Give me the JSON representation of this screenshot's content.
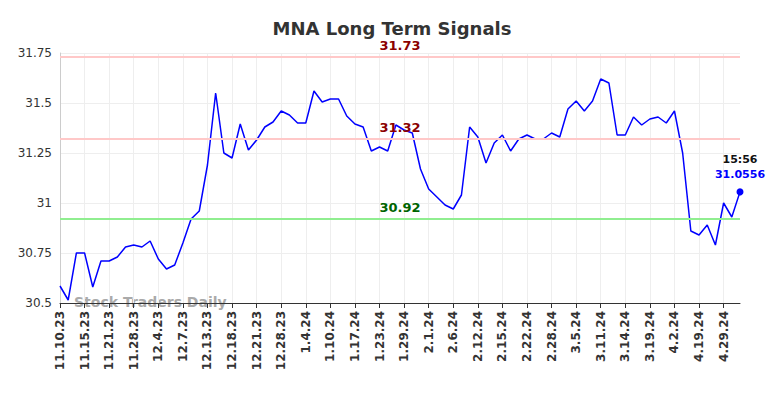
{
  "chart_data": {
    "type": "line",
    "title": "MNA Long Term Signals",
    "color": "#0000ff",
    "categories": [
      "11.10.23",
      null,
      null,
      "11.15.23",
      null,
      null,
      "11.21.23",
      null,
      null,
      "11.28.23",
      null,
      null,
      "12.4.23",
      null,
      null,
      "12.7.23",
      null,
      null,
      "12.13.23",
      null,
      null,
      "12.18.23",
      null,
      null,
      "12.21.23",
      null,
      null,
      "12.28.23",
      null,
      null,
      "1.4.24",
      null,
      null,
      "1.10.24",
      null,
      null,
      "1.17.24",
      null,
      null,
      "1.23.24",
      null,
      null,
      "1.29.24",
      null,
      null,
      "2.1.24",
      null,
      null,
      "2.6.24",
      null,
      null,
      "2.12.24",
      null,
      null,
      "2.15.24",
      null,
      null,
      "2.22.24",
      null,
      null,
      "2.28.24",
      null,
      null,
      "3.5.24",
      null,
      null,
      "3.11.24",
      null,
      null,
      "3.14.24",
      null,
      null,
      "3.19.24",
      null,
      null,
      "4.2.24",
      null,
      null,
      "4.19.24",
      null,
      null,
      "4.29.24",
      null,
      null
    ],
    "values": [
      30.585,
      30.515,
      30.75,
      30.75,
      30.58,
      30.71,
      30.71,
      30.73,
      30.78,
      30.79,
      30.78,
      30.81,
      30.72,
      30.67,
      30.69,
      30.8,
      30.92,
      30.96,
      31.19,
      31.55,
      31.25,
      31.225,
      31.395,
      31.265,
      31.315,
      31.38,
      31.405,
      31.46,
      31.44,
      31.4,
      31.4,
      31.56,
      31.505,
      31.52,
      31.52,
      31.435,
      31.395,
      31.38,
      31.26,
      31.28,
      31.26,
      31.39,
      31.365,
      31.35,
      31.17,
      31.07,
      31.03,
      30.99,
      30.97,
      31.04,
      31.38,
      31.33,
      31.2,
      31.3,
      31.34,
      31.26,
      31.32,
      31.34,
      31.32,
      31.32,
      31.35,
      31.33,
      31.47,
      31.51,
      31.46,
      31.51,
      31.62,
      31.6,
      31.34,
      31.34,
      31.43,
      31.39,
      31.42,
      31.43,
      31.4,
      31.46,
      31.25,
      30.86,
      30.84,
      30.89,
      30.79,
      31.0,
      30.93,
      31.0556
    ],
    "ylim": [
      30.5,
      31.75
    ],
    "yticks": [
      30.5,
      30.75,
      31,
      31.25,
      31.5,
      31.75
    ],
    "grid": true,
    "reference_lines": [
      {
        "value": 31.73,
        "color": "#8b0000"
      },
      {
        "value": 31.32,
        "color": "#8b0000"
      },
      {
        "value": 30.92,
        "color": "#006400"
      }
    ],
    "annotation": {
      "text": "15:56",
      "value": 31.0556
    },
    "watermark": "Stock Traders Daily"
  }
}
